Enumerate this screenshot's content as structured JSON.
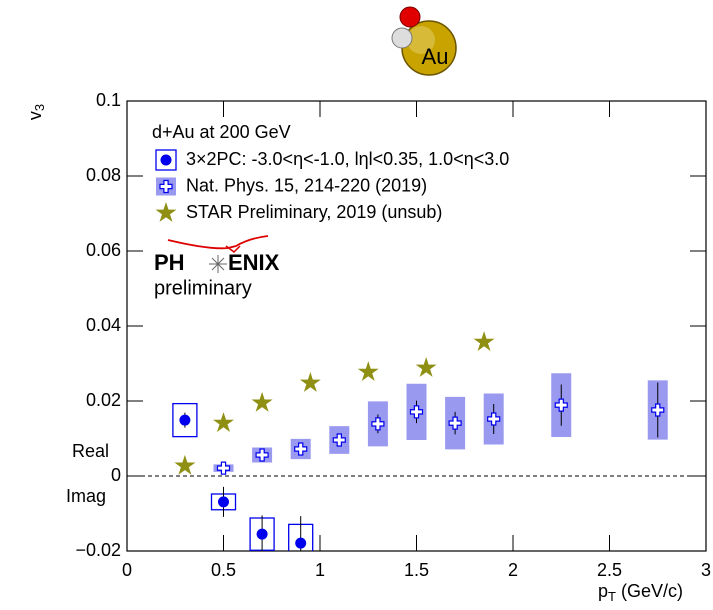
{
  "chart_data": {
    "type": "scatter",
    "icon_label": "Au",
    "ylabel": {
      "base": "v",
      "sub": "3"
    },
    "xlabel": {
      "base": "p",
      "sub": "T",
      "unit": "(GeV/c)"
    },
    "legend_title": "d+Au at 200 GeV",
    "logo_left": "PH",
    "logo_right": "ENIX",
    "logo_sub": "preliminary",
    "real_label": "Real",
    "imag_label": "Imag",
    "xlim": [
      0,
      3
    ],
    "ylim": [
      -0.02,
      0.1
    ],
    "xticks": [
      0,
      0.5,
      1,
      1.5,
      2,
      2.5,
      3
    ],
    "yticks": [
      {
        "value": -0.02,
        "label": "−0.02"
      },
      0,
      0.02,
      0.04,
      0.06,
      0.08,
      0.1
    ],
    "series": [
      {
        "name": "3×2PC: -3.0<η<-1.0, lηl<0.35, 1.0<η<3.0",
        "color": "#0000ee",
        "marker": "circle",
        "x": [
          0.3,
          0.5,
          0.7,
          0.9
        ],
        "values": [
          0.0149,
          -0.0069,
          -0.0155,
          -0.0179
        ],
        "err": [
          0.002,
          0.004,
          0.005,
          0.0072
        ],
        "sys": [
          0.0044,
          0.0021,
          0.0043,
          0.005
        ]
      },
      {
        "name": "Nat. Phys. 15, 214-220 (2019)",
        "color": "#0000ee",
        "box_color": "#9999f0",
        "marker": "cross",
        "x": [
          0.5,
          0.7,
          0.9,
          1.1,
          1.3,
          1.5,
          1.7,
          1.9,
          2.25,
          2.75
        ],
        "values": [
          0.0021,
          0.0056,
          0.0072,
          0.0096,
          0.0139,
          0.0171,
          0.0141,
          0.0152,
          0.0189,
          0.0176
        ],
        "err": [
          0.0005,
          0.001,
          0.0012,
          0.0015,
          0.0025,
          0.003,
          0.003,
          0.004,
          0.0055,
          0.0073
        ],
        "sys": [
          0.001,
          0.002,
          0.0027,
          0.0037,
          0.006,
          0.0075,
          0.007,
          0.0068,
          0.0085,
          0.0079
        ]
      },
      {
        "name": "STAR Preliminary, 2019 (unsub)",
        "color": "#8f8f14",
        "marker": "star",
        "x": [
          0.3,
          0.5,
          0.7,
          0.95,
          1.25,
          1.55,
          1.85
        ],
        "values": [
          0.0027,
          0.0141,
          0.0195,
          0.0248,
          0.0277,
          0.0288,
          0.0357
        ]
      }
    ]
  }
}
